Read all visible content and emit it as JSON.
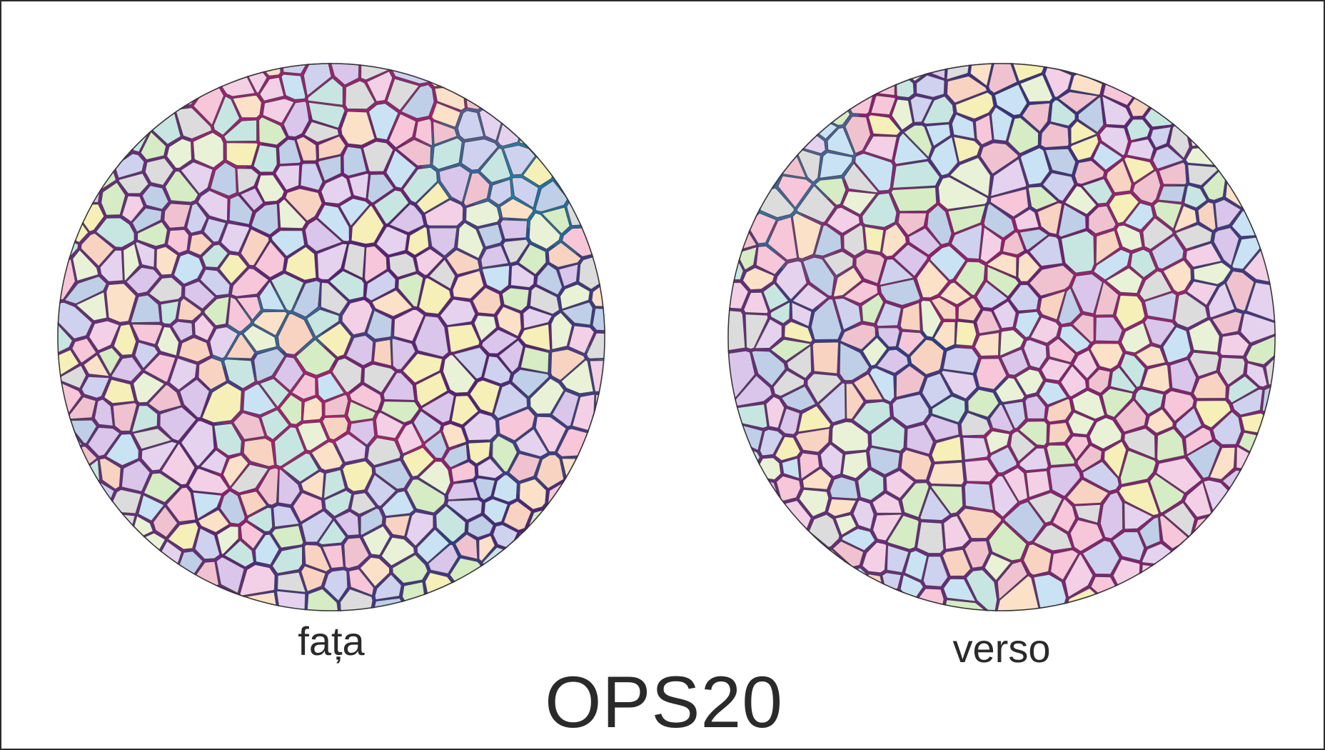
{
  "front": {
    "label": "fața",
    "pattern": "multicolor-mosaic"
  },
  "back": {
    "label": "verso",
    "pattern": "multicolor-mosaic"
  },
  "product_code": "OPS20",
  "colors": {
    "frame": "#2b2b2b",
    "text": "#2a2a2a",
    "outline": "#4a4a4a",
    "tile_palette": [
      "#f7c6d9",
      "#d9c6ea",
      "#c9e3f4",
      "#d6ecc4",
      "#f6efb8",
      "#f8d3c1",
      "#e4d2ef",
      "#c7e6e2",
      "#f3d0e6",
      "#cfd2ee",
      "#e9f2d6",
      "#fbe1c8",
      "#bfcfe8",
      "#f0c2cf",
      "#dcdcdc"
    ],
    "seam_palette": [
      "#c2186a",
      "#5a1a7a",
      "#1f3f8f",
      "#0e8fb3",
      "#8a1f74"
    ]
  }
}
